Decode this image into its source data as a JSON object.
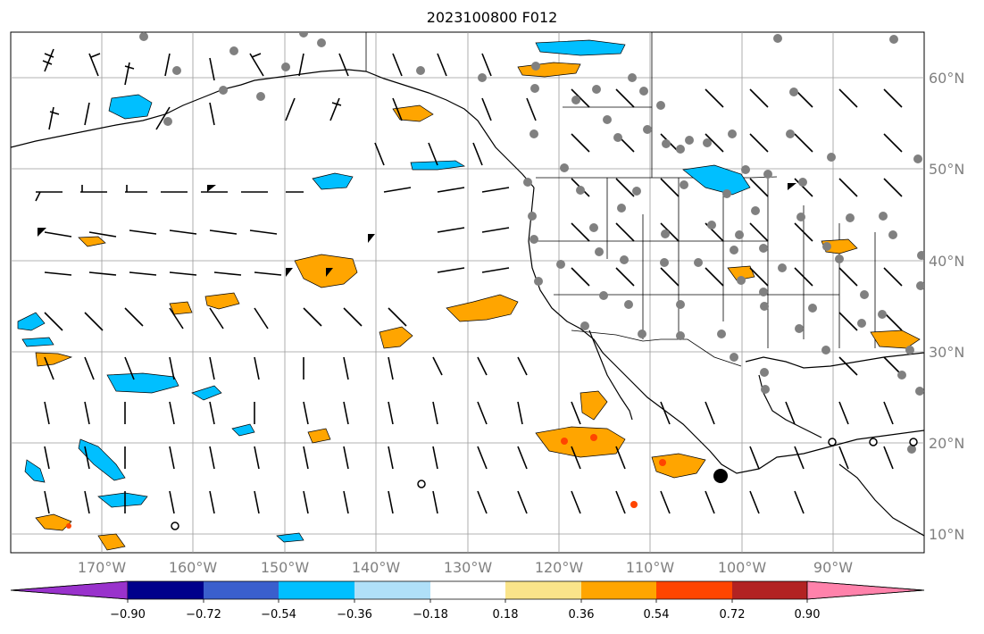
{
  "title": "2023100800 F012",
  "map": {
    "lon_labels": [
      "170°W",
      "160°W",
      "150°W",
      "140°W",
      "130°W",
      "120°W",
      "110°W",
      "100°W",
      "90°W"
    ],
    "lat_labels": [
      "60°N",
      "50°N",
      "40°N",
      "30°N",
      "20°N",
      "10°N"
    ],
    "label_color": "#808080",
    "grid_color": "#9a9a9a"
  },
  "colorbar": {
    "colors": [
      "#9932cc",
      "#00008b",
      "#3a5fcd",
      "#00bfff",
      "#b0e0f8",
      "#ffffff",
      "#fae48a",
      "#ffa500",
      "#ff4500",
      "#b22222",
      "#ff82ab"
    ],
    "tick_labels": [
      "−0.90",
      "−0.72",
      "−0.54",
      "−0.36",
      "−0.18",
      "0.18",
      "0.36",
      "0.54",
      "0.72",
      "0.90"
    ]
  }
}
